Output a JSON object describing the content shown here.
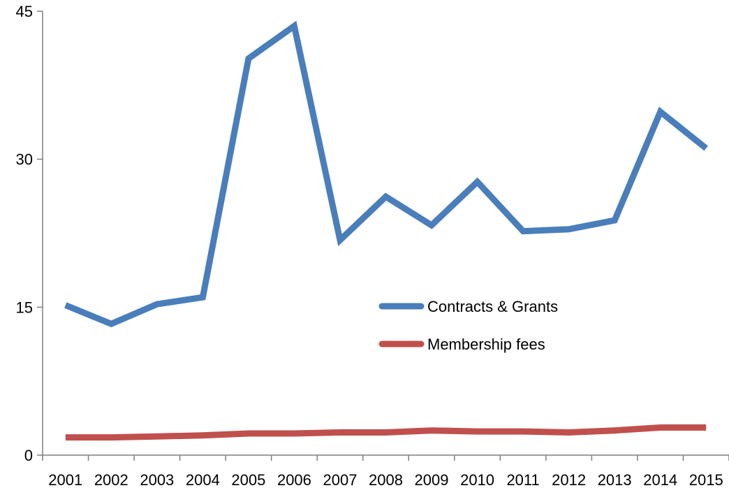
{
  "chart_data": {
    "type": "line",
    "title": "",
    "xlabel": "",
    "ylabel": "",
    "categories": [
      "2001",
      "2002",
      "2003",
      "2004",
      "2005",
      "2006",
      "2007",
      "2008",
      "2009",
      "2010",
      "2011",
      "2012",
      "2013",
      "2014",
      "2015"
    ],
    "ylim": [
      0,
      45
    ],
    "yticks": [
      "0",
      "15",
      "30",
      "45"
    ],
    "grid": false,
    "legend_position": "center-right",
    "series": [
      {
        "name": "Contracts & Grants",
        "color": "#4a7ebb",
        "values": [
          15.2,
          13.3,
          15.3,
          16.0,
          40.2,
          43.5,
          21.8,
          26.2,
          23.3,
          27.7,
          22.7,
          22.9,
          23.8,
          34.8,
          31.1
        ]
      },
      {
        "name": "Membership fees",
        "color": "#c0504d",
        "values": [
          1.8,
          1.8,
          1.9,
          2.0,
          2.2,
          2.2,
          2.3,
          2.3,
          2.5,
          2.4,
          2.4,
          2.3,
          2.5,
          2.8,
          2.8
        ]
      }
    ]
  }
}
